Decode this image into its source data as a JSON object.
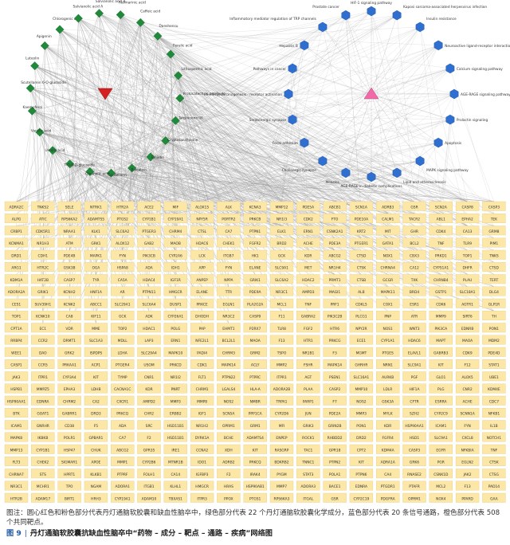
{
  "compounds": [
    "Scutellarein 6-O-glucoside",
    "Luteolin",
    "Apigenin",
    "Chlorogenic acid",
    "Salvianolic acid A",
    "Salvianolic acid B",
    "Rosmarinic acid",
    "Caffeic acid",
    "Danshensu",
    "Ferulic acid",
    "Lithospermic acid",
    "Protocatechuic aldehyde",
    "Tanshinone IIA",
    "Cryptotanshinone",
    "Emodin",
    "Baicalein",
    "Scutellarin",
    "Oleanolic acid",
    "7-O-β-D-glucoside",
    "Ursolic acid",
    "Vanillic acid",
    "Kaempferol"
  ],
  "pathways": [
    "HIF-1 signaling pathway",
    "Kaposi sarcoma-associated herpesvirus infection",
    "Insulin resistance",
    "Neuroactive ligand-receptor interaction",
    "Calcium signaling pathway",
    "AGE-RAGE signaling pathway",
    "Prolactin signaling",
    "Apoptosis",
    "MAPK signaling pathway",
    "Lipid and atherosclerosis",
    "AGE-RAGE in diabetic complications",
    "Measles",
    "Cholinergic synapse",
    "Focal adhesion",
    "Serotonergic synapse",
    "Chemical carcinogenesis - receptor activation",
    "Pathways in cancer",
    "Hepatitis B",
    "Inflammatory mediator regulation of TRP channels",
    "Prostate cancer"
  ],
  "targets": [
    "ADRA2C",
    "TNKS2",
    "SELE",
    "NTRK1",
    "HTR2A",
    "ACE2",
    "MIF",
    "ALOX15",
    "ALK",
    "KCNA3",
    "MMP12",
    "PDE5A",
    "ABCB1",
    "SCN1A",
    "ADRB3",
    "GSR",
    "SCN2A",
    "CASP8",
    "CASP3",
    "ALPG",
    "ATIC",
    "RPS6KA2",
    "ADAMTS5",
    "PTGS2",
    "CYP1B1",
    "CYP19A1",
    "NPY5R",
    "PORTR2",
    "PRKCB",
    "NR1I3",
    "CDK2",
    "FTO",
    "PDE10A",
    "CALM1",
    "TACR2",
    "ABL1",
    "EPHA2",
    "TEK",
    "CRBP1",
    "CDK5R1",
    "NRAA1",
    "KLK1",
    "SLC6A2",
    "PTGER3",
    "CHRM4",
    "CTSL",
    "CA7",
    "PTPN1",
    "ELK1",
    "ERN1",
    "CSNK2A1",
    "KRT2",
    "MIT",
    "GHR",
    "CDK4",
    "CA13",
    "GRM8",
    "KCNMA1",
    "NR1H3",
    "ATM",
    "GRK1",
    "ALOX12",
    "GAB2",
    "MAOB",
    "HDAC6",
    "CHEK1",
    "FGFR2",
    "BRD2",
    "ACHE",
    "PDE3A",
    "PTGER1",
    "GATA1",
    "BCL2",
    "TNF",
    "TLR9",
    "PIM1",
    "DRD1",
    "CDH1",
    "PDE4B",
    "MAPK1",
    "FYN",
    "PIK3CB",
    "CYP2A6",
    "LCK",
    "ITGB7",
    "HK1",
    "GCK",
    "KDR",
    "ABCG2",
    "CTSD",
    "NOX1",
    "CBX3",
    "PRKD1",
    "TOP1",
    "TNKS",
    "ARG1",
    "HTR2C",
    "GSK3B",
    "OGA",
    "HSPA8",
    "ADA",
    "IDH1",
    "APP",
    "FYN",
    "ELANE",
    "SLC9A1",
    "MET",
    "NR1H4",
    "CTSK",
    "CHRNA4",
    "CA12",
    "CYP51A1",
    "DHFR",
    "CTSD",
    "KDM1A",
    "HAT2B",
    "CASP7",
    "TYR",
    "CA5A",
    "HDAC4",
    "IGF1R",
    "ANPEP",
    "NPPA",
    "GRIK1",
    "SLC6A2",
    "HDAC2",
    "PRMT1",
    "CTSB",
    "GCGR",
    "TXK",
    "CHRNB4",
    "PLAU",
    "TERT",
    "ADORA2A",
    "GRIK1",
    "KCNH2",
    "HNF1A",
    "AR",
    "PTPN11",
    "HMGCR",
    "ELANE",
    "TTR",
    "PDE9A",
    "NR3C1",
    "AMPD3",
    "MAGI1",
    "ALB",
    "MAPK11",
    "BRD4",
    "GSTP1",
    "SLC18A1",
    "DLG4",
    "CES1",
    "SUV39H1",
    "KCNK2",
    "ABCC1",
    "SLC29A1",
    "SLC6A4",
    "DUSP1",
    "PRKCE",
    "EGLN1",
    "PLA2G2A",
    "MCL1",
    "TNF",
    "PRF1",
    "CDKL5",
    "COX1",
    "ESR1",
    "CDK6",
    "AGTR1",
    "GLP1R",
    "TOP1",
    "KCNK10",
    "CA8",
    "KIF11",
    "GCK",
    "ADK",
    "CYP26A1",
    "DHODH",
    "NR3C2",
    "CASP9",
    "F11",
    "GABRA2",
    "PIK3C2B",
    "PLCG1",
    "PNP",
    "ATR",
    "MMP9",
    "SIRT6",
    "TH",
    "CPT1A",
    "EC1",
    "VDR",
    "MME",
    "TOP2",
    "HDAC1",
    "POLG",
    "PAP",
    "EHMT1",
    "P2RX7",
    "TLR8",
    "FGF2",
    "HTR6",
    "NPY2R",
    "NOS1",
    "WNT3",
    "PIK3CA",
    "EDNRB",
    "PON1",
    "RRBP4",
    "CCR2",
    "DRMT1",
    "SLC1A3",
    "MDLL",
    "LAP3",
    "ERN1",
    "NFE2L1",
    "BCL2L1",
    "MAOA",
    "F13",
    "HTR1",
    "PRKCG",
    "ECE1",
    "CYP1A1",
    "HDAC6",
    "MAPT",
    "MAOA",
    "MDM2",
    "WEE1",
    "DAO",
    "GRK2",
    "ISPDPS",
    "LDHA",
    "SLC29A4",
    "MAPK10",
    "PADI4",
    "CHRM3",
    "GRM2",
    "TSPO",
    "NR1B1",
    "F3",
    "MGMT",
    "PTGES",
    "ELAVL1",
    "GABRB3",
    "CDK9",
    "PDE4D",
    "CASP1",
    "CCR5",
    "PRKAA1",
    "ACP1",
    "PTGER4",
    "USOM",
    "PRKCD",
    "CDK1",
    "MAPK14",
    "ACLY",
    "MMP2",
    "FSHR",
    "MAPK14",
    "GHRHR",
    "NRN1",
    "SLC9A1",
    "KIT",
    "F12",
    "STAT1",
    "JAK3",
    "ITPR1",
    "CYP3A4",
    "KIT",
    "TYMP",
    "CNR1",
    "NR1I2",
    "FLT1",
    "PTPN22",
    "PTPRC",
    "ITPR1",
    "AGT",
    "PSEN1",
    "SLC16A1",
    "AURKB",
    "PGF",
    "GLO1",
    "ALOX5",
    "UBE1",
    "HSPB1",
    "MMPZ5",
    "EPHA3",
    "LDHB",
    "CACNA1C",
    "KDR",
    "PNRT",
    "CHRM1",
    "LGALS4",
    "HLA-A",
    "ADORA2B",
    "PLAA",
    "CASP2",
    "MMP10",
    "LDLR",
    "HIF1A",
    "PLG",
    "CNR2",
    "KDM4E",
    "HSP90AA1",
    "EDNRA",
    "CHRM2",
    "CA2",
    "CXCR1",
    "AMPD2",
    "MMP3",
    "MMP8",
    "NOS2",
    "NMBR",
    "TRPA1",
    "PARP1",
    "F7",
    "NOS2",
    "GSK3A",
    "CFTR",
    "ESRRA",
    "ACHE",
    "CDC7",
    "BTK",
    "GOAT1",
    "GABRR1",
    "DRD3",
    "PRKCQ",
    "CHR2",
    "ERBB2",
    "IGF1",
    "SCN5A",
    "PPP1CA",
    "CYP2D6",
    "JUN",
    "PDE2A",
    "MMP3",
    "MYLK",
    "SZH2",
    "CYP2C9",
    "SCNN1A",
    "NFKB1",
    "ICAM1",
    "GNRHR",
    "CD38",
    "F5",
    "ADA",
    "SRC",
    "HSD11B1",
    "NR1H2",
    "OPRM1",
    "GRM1",
    "MFI",
    "GRIK3",
    "GRIN2B",
    "PON1",
    "KDR",
    "HSP90AA1",
    "ICAM1",
    "FYN",
    "IL1B",
    "MAPK8",
    "IKBKB",
    "POLR1",
    "GPBAR1",
    "CA7",
    "F2",
    "HSD11B1",
    "DYRK1A",
    "BCHE",
    "ADAMTS4",
    "ENPEP",
    "ROCK1",
    "RHBDD2",
    "DRD2",
    "FGFR4",
    "HSD1",
    "SLC9A1",
    "CXCL8",
    "NOTCH1",
    "MMP13",
    "CYP1B1",
    "HSP47",
    "CHUK",
    "ABCG2",
    "GPR35",
    "IRE1",
    "CCNA2",
    "XDH",
    "KIT",
    "RASGRP",
    "TAC1",
    "GPR18",
    "CPT2",
    "KDM4A",
    "CASP3",
    "EGFR",
    "NFKBIA",
    "TNF",
    "FLT3",
    "CHEK2",
    "SIGMAR1",
    "APOE",
    "MMP1",
    "CYP2B6",
    "MTNR1B",
    "IDO1",
    "ADRB2",
    "PRKCQ",
    "BDKRB2",
    "TNNC1",
    "PTPN2",
    "KIT",
    "ADRA1A",
    "GRK6",
    "PGR",
    "EGLN2",
    "CTSK",
    "CHRNA7",
    "STS",
    "HPRT1",
    "KLKB1",
    "PTPRF",
    "FOLH1",
    "CA14",
    "IGFBP3",
    "F2",
    "IRAK4",
    "PYGM",
    "STAT3",
    "POLA1",
    "PTPN6",
    "CA4",
    "RNASE2",
    "CSNK1D",
    "JAK2",
    "CTSG",
    "NR3C1",
    "MCHR1",
    "TPO",
    "NGAM",
    "ADORA1",
    "ITGB1",
    "KLHL1",
    "HMGCR",
    "HRAS",
    "HSP90AB1",
    "MMP7",
    "ADORA3",
    "BACE1",
    "EDNRA",
    "PTGDR1",
    "PTAFR",
    "MCL2",
    "F13",
    "PAD14",
    "HTR2B",
    "ADAM17",
    "BIRT1",
    "HRH3",
    "CYP19A1",
    "ADAM10",
    "TBXAS1",
    "ITPR3",
    "PPOX",
    "PTGS1",
    "RPS6KA3",
    "ITGAL",
    "GSR",
    "CYP2C19",
    "PDGFRA",
    "OPRM1",
    "NOX4",
    "PPARD",
    "GAA",
    "EGLN1",
    "CTSS",
    "CA3",
    "ASIC3",
    "GRIN2",
    "CASP3",
    "CA4",
    "CXCR3",
    "PRKDC",
    "ACE",
    "NCOA2",
    "TYMS",
    "HDAC3",
    "FOXP1",
    "NR1B1",
    "CHEK2",
    "CCR1",
    "NQO1",
    "HDAC8",
    "BRD4"
  ],
  "caption": {
    "note": "图注：圆心红色和粉色部分代表丹灯通脑软胶囊和缺血性脑卒中，绿色部分代表 22 个丹灯通脑软胶囊化学成分，蓝色部分代表 20 条信号通路，橙色部分代表 508 个共同靶点。",
    "figure_number": "图 9",
    "separator": "|",
    "title": "丹灯通脑软胶囊抗缺血性脑卒中“药物 – 成分 – 靶点 – 通路 – 疾病”网络图"
  },
  "colors": {
    "drug_center": "#d42020",
    "disease_center": "#f06aa8",
    "compound": "#1f8a3a",
    "pathway": "#2f6fd0",
    "target": "#fce7a6",
    "edge": "#9a9a9a"
  }
}
